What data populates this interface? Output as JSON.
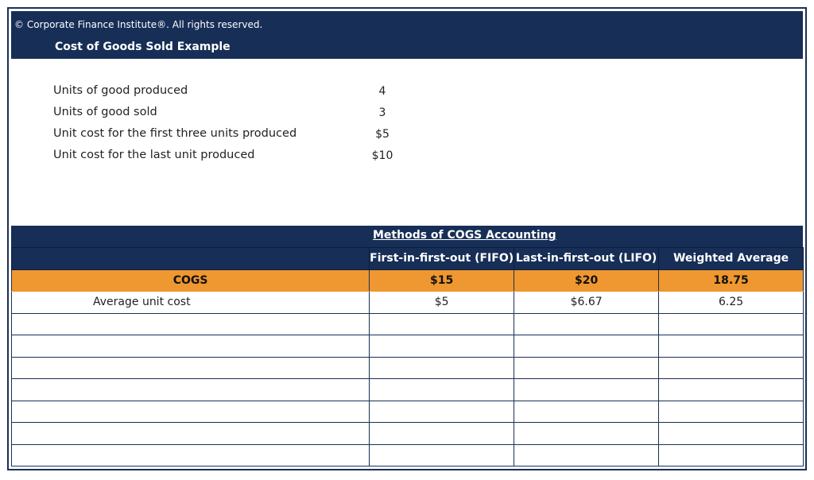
{
  "header": {
    "copyright": "© Corporate Finance Institute®. All rights reserved.",
    "title": "Cost of Goods Sold Example"
  },
  "inputs": [
    {
      "label": "Units of good produced",
      "value": "4"
    },
    {
      "label": "Units of good sold",
      "value": "3"
    },
    {
      "label": "Unit cost for the first three units produced",
      "value": "$5"
    },
    {
      "label": "Unit cost for the last unit produced",
      "value": "$10"
    }
  ],
  "table": {
    "title": "Methods of COGS Accounting",
    "columns": [
      "",
      "First-in-first-out (FIFO)",
      "Last-in-first-out (LIFO)",
      "Weighted Average"
    ],
    "rows": [
      [
        "COGS",
        "$15",
        "$20",
        "18.75"
      ],
      [
        "Average unit cost",
        "$5",
        "$6.67",
        "6.25"
      ]
    ],
    "highlight_color": "#ef9730",
    "header_color": "#172e57"
  }
}
